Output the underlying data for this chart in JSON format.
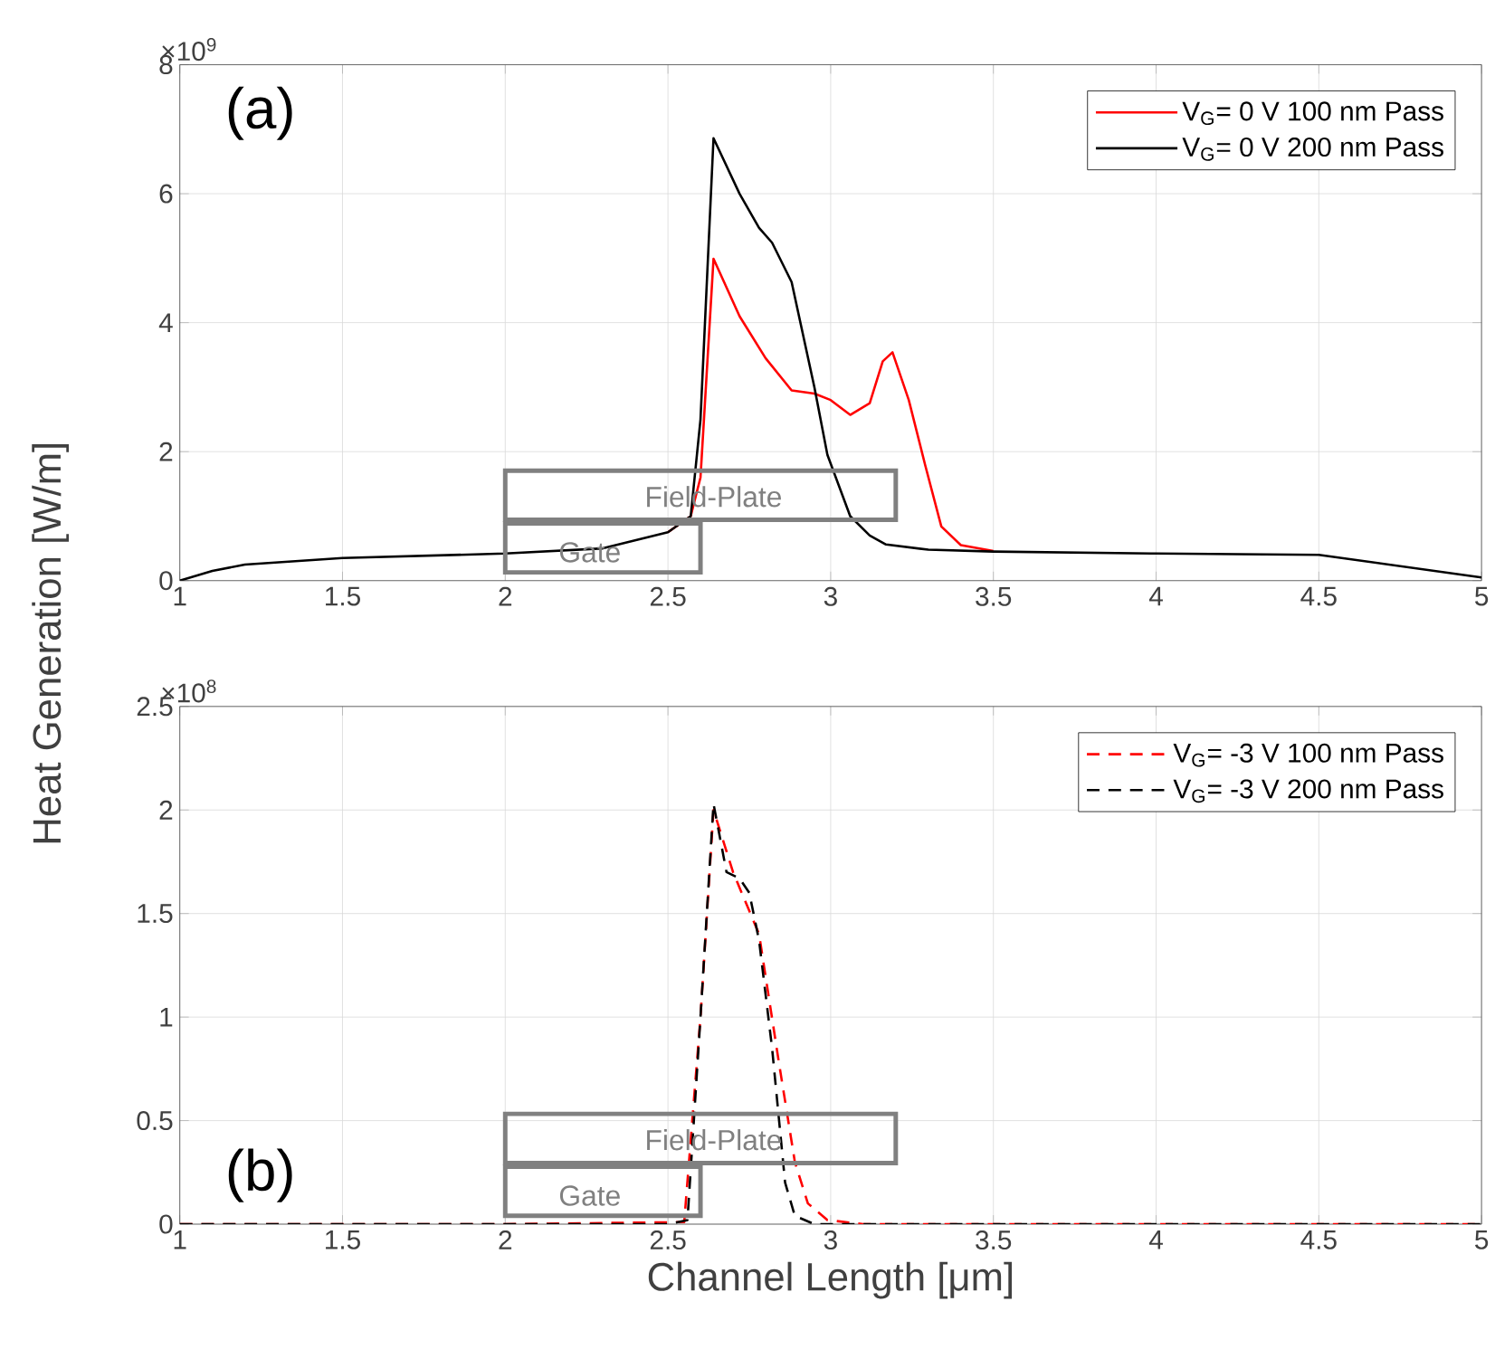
{
  "chart_data": [
    {
      "type": "line",
      "ylabel": "Heat Generation [W/m]",
      "xlim": [
        1,
        5
      ],
      "ylim": [
        0,
        8
      ],
      "xticks": [
        1,
        1.5,
        2,
        2.5,
        3,
        3.5,
        4,
        4.5,
        5
      ],
      "yticks": [
        0,
        2,
        4,
        6,
        8
      ],
      "grid": true,
      "legend": "top right",
      "marker": "none",
      "annotations": [
        "(a)",
        "×10$^{9}$",
        "Field-Plate",
        "Gate"
      ],
      "series": [
        {
          "name": "V$_{G}$= 0 V 100 nm Pass",
          "color": "#ff0000",
          "line_style": "solid",
          "x": [
            2.5,
            2.57,
            2.6,
            2.64,
            2.72,
            2.8,
            2.88,
            2.95,
            3.0,
            3.06,
            3.12,
            3.16,
            3.19,
            3.24,
            3.29,
            3.34,
            3.4,
            3.5
          ],
          "values": [
            0.75,
            1.0,
            1.6,
            4.99,
            4.1,
            3.45,
            2.95,
            2.9,
            2.8,
            2.57,
            2.75,
            3.4,
            3.54,
            2.8,
            1.8,
            0.84,
            0.55,
            0.46
          ]
        },
        {
          "name": "V$_{G}$= 0 V 200 nm Pass",
          "color": "#000000",
          "line_style": "solid",
          "x": [
            1.0,
            1.1,
            1.2,
            1.5,
            2.0,
            2.3,
            2.5,
            2.57,
            2.6,
            2.64,
            2.72,
            2.78,
            2.82,
            2.88,
            2.95,
            2.99,
            3.06,
            3.12,
            3.17,
            3.3,
            3.5,
            4.0,
            4.5,
            5.0
          ],
          "values": [
            0.0,
            0.15,
            0.25,
            0.35,
            0.42,
            0.5,
            0.75,
            1.0,
            2.5,
            6.86,
            6.0,
            5.47,
            5.24,
            4.63,
            3.0,
            1.95,
            1.0,
            0.7,
            0.56,
            0.48,
            0.45,
            0.42,
            0.4,
            0.05
          ]
        }
      ]
    },
    {
      "type": "line",
      "xlabel": "Channel Length [μm]",
      "xlim": [
        1,
        5
      ],
      "ylim": [
        0,
        2.5
      ],
      "xticks": [
        1,
        1.5,
        2,
        2.5,
        3,
        3.5,
        4,
        4.5,
        5
      ],
      "yticks": [
        0,
        0.5,
        1,
        1.5,
        2,
        2.5
      ],
      "grid": true,
      "legend": "top right",
      "marker": "none",
      "annotations": [
        "(b)",
        "×10$^{8}$",
        "Field-Plate",
        "Gate"
      ],
      "series": [
        {
          "name": "V$_{G}$= -3 V 100 nm Pass",
          "color": "#ff0000",
          "line_style": "dashed",
          "x": [
            1.0,
            2.0,
            2.55,
            2.6,
            2.64,
            2.7,
            2.78,
            2.84,
            2.89,
            2.93,
            2.99,
            3.1,
            4.0,
            5.0
          ],
          "values": [
            0.0,
            0.0,
            0.01,
            1.0,
            2.0,
            1.7,
            1.4,
            0.79,
            0.3,
            0.1,
            0.02,
            0.0,
            0.0,
            0.0
          ]
        },
        {
          "name": "V$_{G}$= -3 V 200 nm Pass",
          "color": "#000000",
          "line_style": "dashed",
          "x": [
            1.0,
            2.0,
            2.5,
            2.56,
            2.6,
            2.64,
            2.68,
            2.72,
            2.75,
            2.78,
            2.82,
            2.86,
            2.89,
            2.95,
            4.0,
            5.0
          ],
          "values": [
            0.0,
            0.0,
            0.0,
            0.02,
            1.0,
            2.03,
            1.7,
            1.67,
            1.6,
            1.37,
            0.85,
            0.2,
            0.04,
            0.0,
            0.0,
            0.0
          ]
        }
      ]
    }
  ]
}
